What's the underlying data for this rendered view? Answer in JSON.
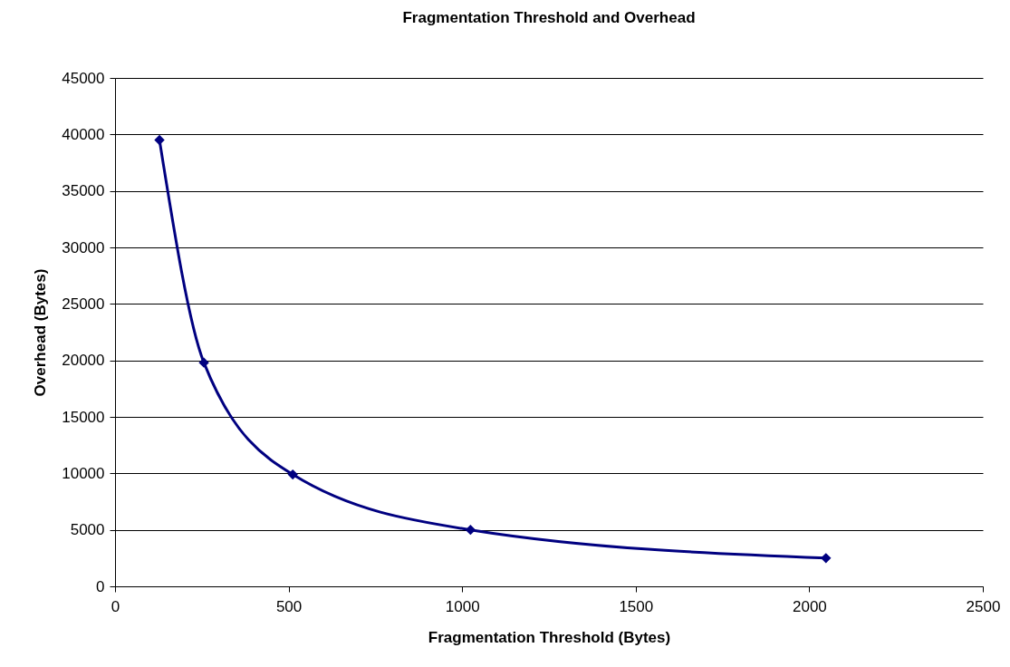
{
  "chart_data": {
    "type": "line",
    "title": "Fragmentation Threshold and Overhead",
    "xlabel": "Fragmentation Threshold (Bytes)",
    "ylabel": "Overhead (Bytes)",
    "x": [
      128,
      256,
      512,
      1024,
      2048
    ],
    "series": [
      {
        "color": "#000080",
        "values": [
          39500,
          19800,
          9900,
          5000,
          2500
        ]
      }
    ],
    "xlim": [
      0,
      2500
    ],
    "xticks": [
      0,
      500,
      1000,
      1500,
      2000,
      2500
    ],
    "ylim": [
      0,
      45000
    ],
    "yticks": [
      0,
      5000,
      10000,
      15000,
      20000,
      25000,
      30000,
      35000,
      40000,
      45000
    ],
    "grid": "y",
    "marker": "diamond",
    "line_style": "solid",
    "legend": false
  }
}
